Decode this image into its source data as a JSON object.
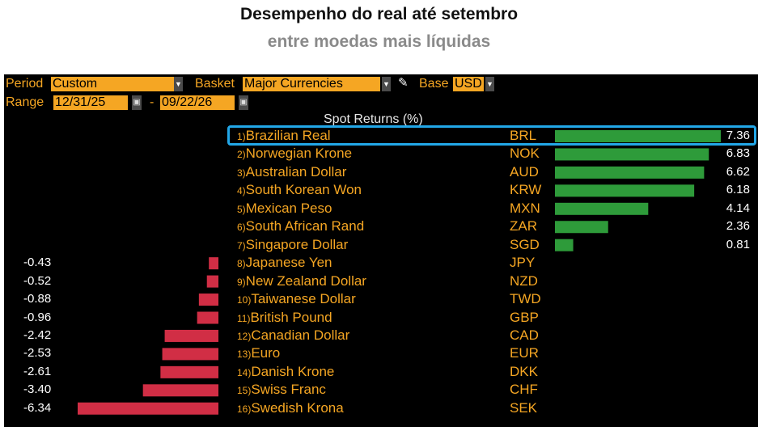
{
  "header": {
    "title": "Desempenho do real até setembro",
    "subtitle": "entre moedas mais líquidas"
  },
  "controls": {
    "period_label": "Period",
    "period_value": "Custom",
    "basket_label": "Basket",
    "basket_value": "Major Currencies",
    "base_label": "Base",
    "base_value": "USD",
    "range_label": "Range",
    "range_start": "12/31/25",
    "range_sep": "-",
    "range_end": "09/22/26"
  },
  "colors": {
    "positive": "#2e9b3a",
    "negative": "#d12e45",
    "highlight": "#22a7e8",
    "label": "#f5a623"
  },
  "chart_data": {
    "type": "bar",
    "orientation": "horizontal",
    "title": "Spot Returns (%)",
    "highlighted": "Brazilian Real",
    "rows": [
      {
        "rank": "1)",
        "name": "Brazilian Real",
        "code": "BRL",
        "value": 7.36,
        "label": "7.36"
      },
      {
        "rank": "2)",
        "name": "Norwegian Krone",
        "code": "NOK",
        "value": 6.83,
        "label": "6.83"
      },
      {
        "rank": "3)",
        "name": "Australian Dollar",
        "code": "AUD",
        "value": 6.62,
        "label": "6.62"
      },
      {
        "rank": "4)",
        "name": "South Korean Won",
        "code": "KRW",
        "value": 6.18,
        "label": "6.18"
      },
      {
        "rank": "5)",
        "name": "Mexican Peso",
        "code": "MXN",
        "value": 4.14,
        "label": "4.14"
      },
      {
        "rank": "6)",
        "name": "South African Rand",
        "code": "ZAR",
        "value": 2.36,
        "label": "2.36"
      },
      {
        "rank": "7)",
        "name": "Singapore Dollar",
        "code": "SGD",
        "value": 0.81,
        "label": "0.81"
      },
      {
        "rank": "8)",
        "name": "Japanese Yen",
        "code": "JPY",
        "value": -0.43,
        "label": "-0.43"
      },
      {
        "rank": "9)",
        "name": "New Zealand Dollar",
        "code": "NZD",
        "value": -0.52,
        "label": "-0.52"
      },
      {
        "rank": "10)",
        "name": "Taiwanese Dollar",
        "code": "TWD",
        "value": -0.88,
        "label": "-0.88"
      },
      {
        "rank": "11)",
        "name": "British Pound",
        "code": "GBP",
        "value": -0.96,
        "label": "-0.96"
      },
      {
        "rank": "12)",
        "name": "Canadian Dollar",
        "code": "CAD",
        "value": -2.42,
        "label": "-2.42"
      },
      {
        "rank": "13)",
        "name": "Euro",
        "code": "EUR",
        "value": -2.53,
        "label": "-2.53"
      },
      {
        "rank": "14)",
        "name": "Danish Krone",
        "code": "DKK",
        "value": -2.61,
        "label": "-2.61"
      },
      {
        "rank": "15)",
        "name": "Swiss Franc",
        "code": "CHF",
        "value": -3.4,
        "label": "-3.40"
      },
      {
        "rank": "16)",
        "name": "Swedish Krona",
        "code": "SEK",
        "value": -6.34,
        "label": "-6.34"
      }
    ]
  }
}
